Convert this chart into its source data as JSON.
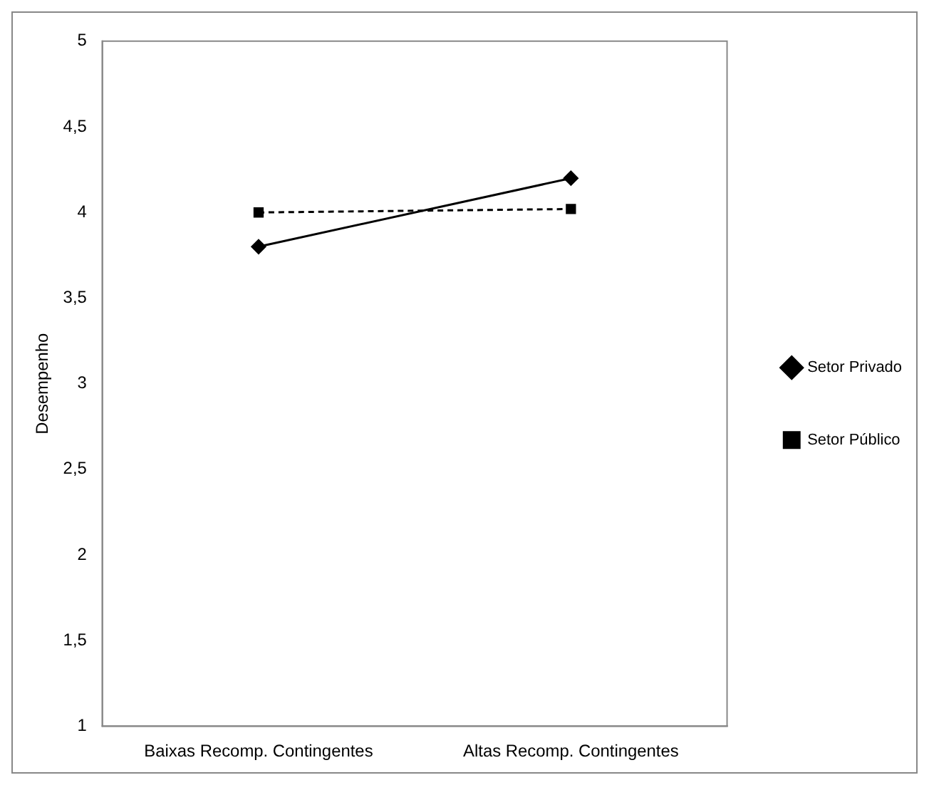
{
  "chart_data": {
    "type": "line",
    "ylabel": "Desempenho",
    "categories": [
      "Baixas Recomp. Contingentes",
      "Altas Recomp. Contingentes"
    ],
    "series": [
      {
        "name": "Setor Privado",
        "color": "#000000",
        "values": [
          3.8,
          4.2
        ],
        "marker": "diamond",
        "line_style": "solid"
      },
      {
        "name": "Setor Público",
        "color": "#000000",
        "values": [
          4.0,
          4.02
        ],
        "marker": "square",
        "line_style": "dashed"
      }
    ],
    "ylim": [
      1,
      5
    ],
    "yticks": [
      1,
      {
        "value": 1.5,
        "label": "1,5"
      },
      2,
      {
        "value": 2.5,
        "label": "2,5"
      },
      3,
      {
        "value": 3.5,
        "label": "3,5"
      },
      4,
      {
        "value": 4.5,
        "label": "4,5"
      },
      5
    ],
    "grid": false,
    "legend": "right"
  }
}
